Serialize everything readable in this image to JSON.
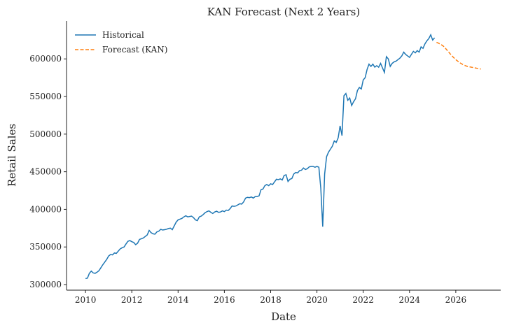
{
  "chart_data": {
    "type": "line",
    "title": "KAN Forecast (Next 2 Years)",
    "xlabel": "Date",
    "ylabel": "Retail Sales",
    "xlim": [
      2009.18,
      2027.94
    ],
    "ylim": [
      292600,
      650400
    ],
    "xticks": [
      2010,
      2012,
      2014,
      2016,
      2018,
      2020,
      2022,
      2024,
      2026
    ],
    "yticks": [
      300000,
      350000,
      400000,
      450000,
      500000,
      550000,
      600000
    ],
    "legend": "upper left",
    "series": [
      {
        "name": "Historical",
        "color": "#1f77b4",
        "dashed": false,
        "x": [
          2010,
          2010.083,
          2010.167,
          2010.25,
          2010.333,
          2010.417,
          2010.5,
          2010.583,
          2010.667,
          2010.75,
          2010.833,
          2010.917,
          2011,
          2011.083,
          2011.167,
          2011.25,
          2011.333,
          2011.417,
          2011.5,
          2011.583,
          2011.667,
          2011.75,
          2011.833,
          2011.917,
          2012,
          2012.083,
          2012.167,
          2012.25,
          2012.333,
          2012.417,
          2012.5,
          2012.583,
          2012.667,
          2012.75,
          2012.833,
          2012.917,
          2013,
          2013.083,
          2013.167,
          2013.25,
          2013.333,
          2013.417,
          2013.5,
          2013.583,
          2013.667,
          2013.75,
          2013.833,
          2013.917,
          2014,
          2014.083,
          2014.167,
          2014.25,
          2014.333,
          2014.417,
          2014.5,
          2014.583,
          2014.667,
          2014.75,
          2014.833,
          2014.917,
          2015,
          2015.083,
          2015.167,
          2015.25,
          2015.333,
          2015.417,
          2015.5,
          2015.583,
          2015.667,
          2015.75,
          2015.833,
          2015.917,
          2016,
          2016.083,
          2016.167,
          2016.25,
          2016.333,
          2016.417,
          2016.5,
          2016.583,
          2016.667,
          2016.75,
          2016.833,
          2016.917,
          2017,
          2017.083,
          2017.167,
          2017.25,
          2017.333,
          2017.417,
          2017.5,
          2017.583,
          2017.667,
          2017.75,
          2017.833,
          2017.917,
          2018,
          2018.083,
          2018.167,
          2018.25,
          2018.333,
          2018.417,
          2018.5,
          2018.583,
          2018.667,
          2018.75,
          2018.833,
          2018.917,
          2019,
          2019.083,
          2019.167,
          2019.25,
          2019.333,
          2019.417,
          2019.5,
          2019.583,
          2019.667,
          2019.75,
          2019.833,
          2019.917,
          2020,
          2020.083,
          2020.167,
          2020.25,
          2020.333,
          2020.417,
          2020.5,
          2020.583,
          2020.667,
          2020.75,
          2020.833,
          2020.917,
          2021,
          2021.083,
          2021.167,
          2021.25,
          2021.333,
          2021.417,
          2021.5,
          2021.583,
          2021.667,
          2021.75,
          2021.833,
          2021.917,
          2022,
          2022.083,
          2022.167,
          2022.25,
          2022.333,
          2022.417,
          2022.5,
          2022.583,
          2022.667,
          2022.75,
          2022.833,
          2022.917,
          2023,
          2023.083,
          2023.167,
          2023.25,
          2023.333,
          2023.417,
          2023.5,
          2023.583,
          2023.667,
          2023.75,
          2023.833,
          2023.917,
          2024,
          2024.083,
          2024.167,
          2024.25,
          2024.333,
          2024.417,
          2024.5,
          2024.583,
          2024.667,
          2024.75,
          2024.833,
          2024.917,
          2025,
          2025.083
        ],
        "values": [
          308000,
          308500,
          315000,
          318000,
          315500,
          315000,
          316500,
          318500,
          322500,
          326500,
          330000,
          333500,
          338000,
          340000,
          339500,
          342000,
          341500,
          344500,
          347500,
          349000,
          350000,
          354000,
          357500,
          358500,
          357000,
          356000,
          353000,
          355000,
          360000,
          361000,
          362000,
          364000,
          366000,
          372000,
          369000,
          367500,
          367000,
          370000,
          371000,
          373500,
          372500,
          373000,
          373500,
          374500,
          375000,
          373000,
          378000,
          383000,
          386000,
          387000,
          388000,
          390000,
          391500,
          390000,
          390500,
          391000,
          389000,
          386000,
          385000,
          390000,
          391000,
          393000,
          395500,
          397000,
          398000,
          396000,
          394500,
          396500,
          397500,
          396000,
          396500,
          398000,
          397000,
          399000,
          398500,
          401000,
          404500,
          404000,
          404500,
          406000,
          407500,
          407000,
          410000,
          415000,
          416000,
          415500,
          416500,
          415000,
          417000,
          417000,
          418000,
          426000,
          427000,
          431500,
          433000,
          431500,
          434000,
          433000,
          436500,
          440000,
          439500,
          440500,
          439000,
          445000,
          446000,
          437000,
          440000,
          441000,
          447000,
          449000,
          448500,
          451500,
          452000,
          455000,
          453000,
          454000,
          456500,
          457000,
          457000,
          456000,
          457000,
          456000,
          428000,
          377000,
          447000,
          470000,
          476000,
          480000,
          484000,
          491000,
          489000,
          495000,
          511000,
          498000,
          551000,
          554000,
          545000,
          548000,
          538000,
          543000,
          547000,
          558000,
          562000,
          560000,
          572000,
          575000,
          586000,
          593000,
          590000,
          593000,
          589000,
          591000,
          589000,
          594000,
          588000,
          582000,
          603000,
          600000,
          590000,
          594000,
          596000,
          597000,
          599000,
          601000,
          604000,
          609000,
          606000,
          604000,
          602000,
          606000,
          610000,
          608000,
          611000,
          609000,
          616000,
          614000,
          620000,
          624000,
          627000,
          632000,
          625000,
          628000
        ]
      },
      {
        "name": "Forecast (KAN)",
        "color": "#ff7f0e",
        "dashed": true,
        "x": [
          2025.167,
          2025.25,
          2025.333,
          2025.417,
          2025.5,
          2025.583,
          2025.667,
          2025.75,
          2025.833,
          2025.917,
          2026,
          2026.083,
          2026.167,
          2026.25,
          2026.333,
          2026.417,
          2026.5,
          2026.583,
          2026.667,
          2026.75,
          2026.833,
          2026.917,
          2027,
          2027.083
        ],
        "values": [
          622000,
          621000,
          619500,
          618000,
          616000,
          613000,
          610000,
          607000,
          604000,
          601500,
          599000,
          597000,
          595000,
          593500,
          592000,
          591000,
          590000,
          589500,
          589000,
          588500,
          588000,
          587500,
          587000,
          586500
        ]
      }
    ]
  }
}
